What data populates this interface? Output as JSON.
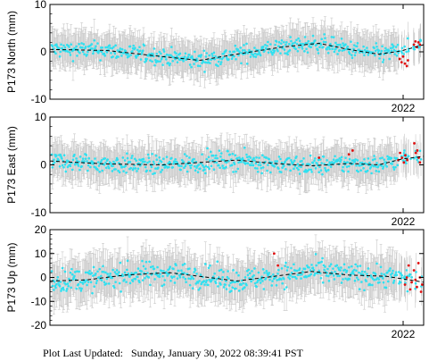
{
  "footer": {
    "label": "Plot Last Updated:",
    "value": "Sunday, January 30, 2022 08:39:41 PST"
  },
  "colors": {
    "points": "#2fe0f0",
    "recent_points": "#e01010",
    "error_bars": "#c8c8c8",
    "model_line": "#000000"
  },
  "chart_data": [
    {
      "type": "scatter",
      "ylabel": "P173 North (mm)",
      "ylim": [
        -10,
        10
      ],
      "yticks": [
        -10,
        0,
        10
      ],
      "xtick_label": "2022",
      "grid": false,
      "error": 3.5,
      "trend": [
        [
          0,
          0.5
        ],
        [
          0.15,
          0.3
        ],
        [
          0.3,
          -1.0
        ],
        [
          0.4,
          -1.8
        ],
        [
          0.5,
          -0.5
        ],
        [
          0.62,
          1.0
        ],
        [
          0.72,
          1.8
        ],
        [
          0.8,
          0.5
        ],
        [
          0.88,
          -0.5
        ],
        [
          0.94,
          0.2
        ],
        [
          1.0,
          1.5
        ]
      ],
      "scatter_sd": 1.3,
      "recent": {
        "x": [
          0.936,
          0.941,
          0.945,
          0.95,
          0.955,
          0.958,
          0.974,
          0.978,
          0.982,
          0.986,
          0.99
        ],
        "y": [
          -1.5,
          -2.2,
          -1.0,
          -2.5,
          -3.0,
          -1.8,
          1.5,
          2.2,
          1.0,
          2.0,
          1.5
        ]
      }
    },
    {
      "type": "scatter",
      "ylabel": "P173 East (mm)",
      "ylim": [
        -10,
        10
      ],
      "yticks": [
        -10,
        0,
        10
      ],
      "xtick_label": "2022",
      "grid": false,
      "error": 3.5,
      "trend": [
        [
          0,
          0.8
        ],
        [
          0.15,
          0.2
        ],
        [
          0.3,
          0.0
        ],
        [
          0.4,
          0.5
        ],
        [
          0.5,
          1.0
        ],
        [
          0.6,
          0.3
        ],
        [
          0.7,
          -0.2
        ],
        [
          0.8,
          0.3
        ],
        [
          0.88,
          0.0
        ],
        [
          0.94,
          1.2
        ],
        [
          1.0,
          1.8
        ]
      ],
      "scatter_sd": 1.4,
      "recent": {
        "x": [
          0.72,
          0.8,
          0.81,
          0.932,
          0.937,
          0.942,
          0.947,
          0.951,
          0.956,
          0.975,
          0.979,
          0.983,
          0.987,
          0.99
        ],
        "y": [
          1.5,
          2.2,
          3.0,
          1.0,
          2.5,
          1.5,
          0.5,
          2.0,
          1.0,
          4.5,
          2.5,
          3.0,
          1.5,
          0.5
        ]
      }
    },
    {
      "type": "scatter",
      "ylabel": "P173 Up (mm)",
      "ylim": [
        -20,
        20
      ],
      "yticks": [
        -20,
        -10,
        0,
        10,
        20
      ],
      "xtick_label": "2022",
      "grid": false,
      "error": 8,
      "trend": [
        [
          0,
          -1.5
        ],
        [
          0.1,
          -1.0
        ],
        [
          0.2,
          1.0
        ],
        [
          0.32,
          2.0
        ],
        [
          0.4,
          0.5
        ],
        [
          0.5,
          -1.5
        ],
        [
          0.6,
          0.5
        ],
        [
          0.7,
          2.5
        ],
        [
          0.8,
          1.0
        ],
        [
          0.9,
          0.5
        ],
        [
          1.0,
          -2.0
        ]
      ],
      "scatter_sd": 3.5,
      "recent": {
        "x": [
          0.6,
          0.61,
          0.95,
          0.955,
          0.96,
          0.964,
          0.968,
          0.974,
          0.978,
          0.982,
          0.986,
          0.99,
          0.993,
          0.996
        ],
        "y": [
          10,
          5,
          -3,
          0,
          5,
          -5,
          -2,
          3,
          -1,
          -4,
          6,
          0,
          -6,
          -3
        ]
      }
    }
  ]
}
